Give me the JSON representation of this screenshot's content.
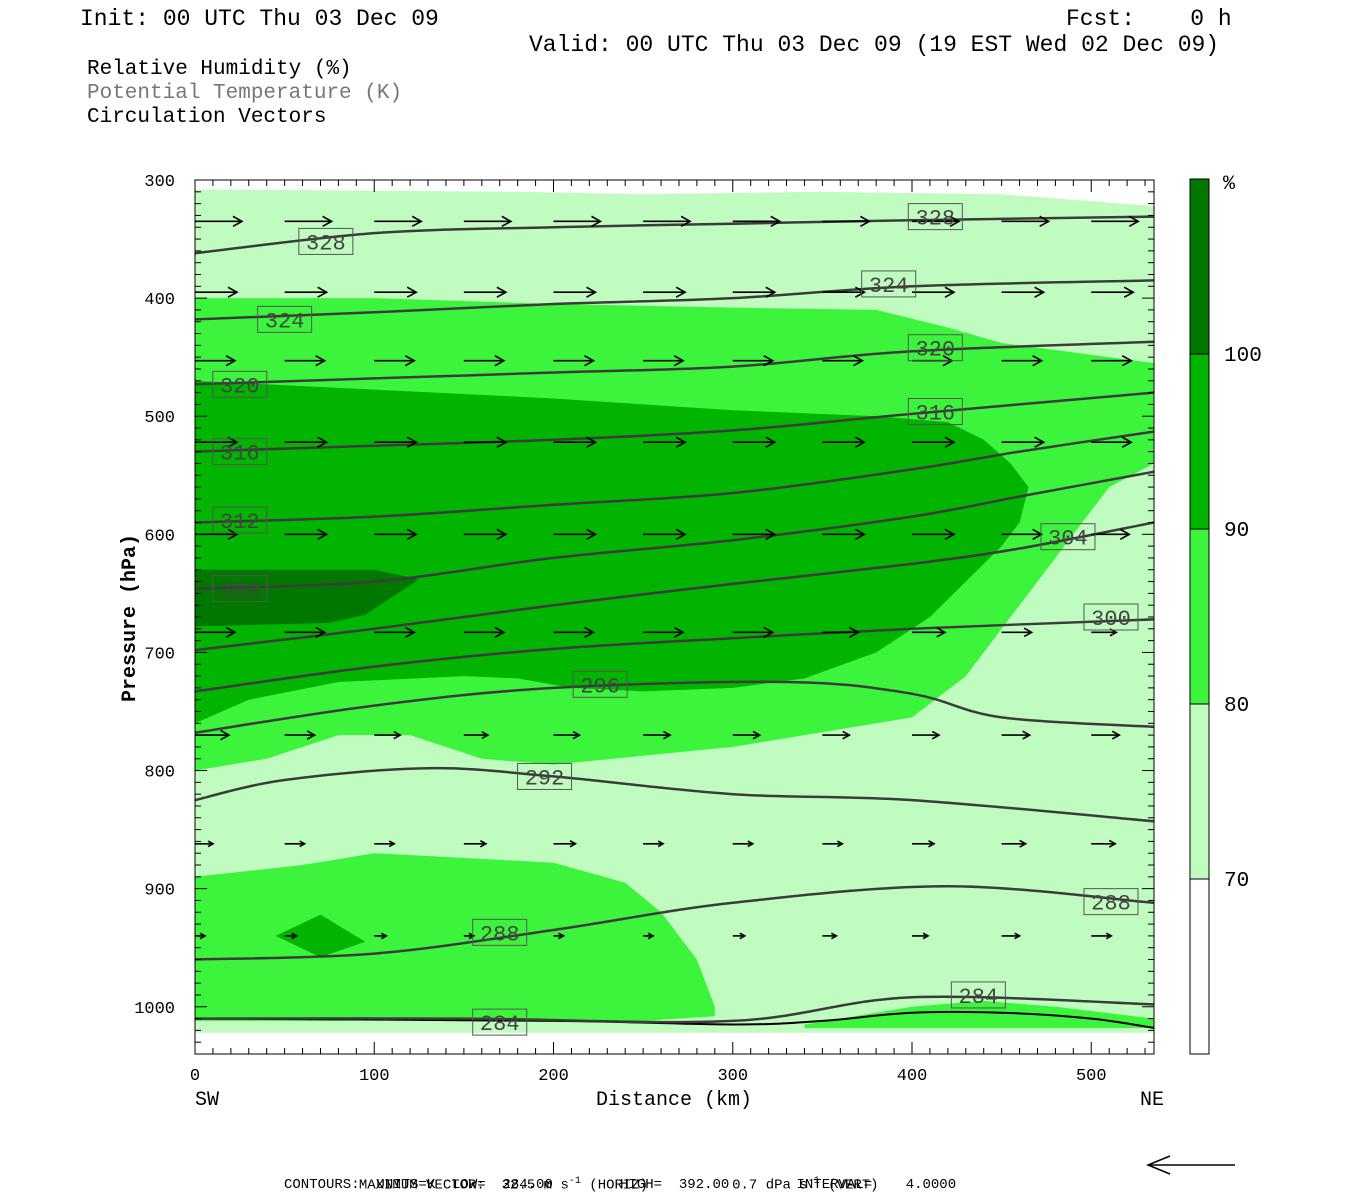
{
  "header": {
    "init": "Init: 00 UTC Thu 03 Dec 09",
    "fcst": "Fcst:    0 h",
    "valid": "Valid: 00 UTC Thu 03 Dec 09 (19 EST Wed 02 Dec 09)"
  },
  "legend_lines": [
    {
      "text": "Relative Humidity (%)",
      "color": "#000000"
    },
    {
      "text": "Potential Temperature (K)",
      "color": "#777777"
    },
    {
      "text": "Circulation Vectors",
      "color": "#000000"
    }
  ],
  "footer": {
    "max_vector_label": "MAXIMUM VECTOR:",
    "max_horiz_value": "32.5 m s",
    "horiz_unit_sup": "-1",
    "horiz_label": "(HORIZ)",
    "max_vert_value": "0.7 dPa s",
    "vert_unit_sup": "-1",
    "vert_label": "(VERT)",
    "contours": "CONTOURS:  UNITS=K  LOW=  284.00        HIGH=  392.00        INTERVAL=    4.0000"
  },
  "chart_data": {
    "type": "contour-cross-section",
    "xlabel": "Distance (km)",
    "ylabel": "Pressure (hPa)",
    "x_range": [
      0,
      535
    ],
    "y_range": [
      300,
      1040
    ],
    "y_scale": "linear-inverted",
    "x_ticks": [
      0,
      100,
      200,
      300,
      400,
      500
    ],
    "y_ticks": [
      300,
      400,
      500,
      600,
      700,
      800,
      900,
      1000
    ],
    "x_end_labels": {
      "left": "SW",
      "right": "NE"
    },
    "colorbar": {
      "unit": "%",
      "ticks": [
        70,
        80,
        90,
        100
      ],
      "bins": [
        {
          "range": [
            0,
            70
          ],
          "color": "#ffffff"
        },
        {
          "range": [
            70,
            80
          ],
          "color": "#c0fcc0"
        },
        {
          "range": [
            80,
            90
          ],
          "color": "#3cf43c"
        },
        {
          "range": [
            90,
            100
          ],
          "color": "#00b400"
        },
        {
          "range": [
            100,
            110
          ],
          "color": "#007800"
        }
      ]
    },
    "rh_fill": [
      {
        "level": 70,
        "color": "#c0fcc0",
        "points": [
          [
            0,
            308
          ],
          [
            180,
            310
          ],
          [
            250,
            312
          ],
          [
            350,
            310
          ],
          [
            450,
            312
          ],
          [
            535,
            322
          ],
          [
            535,
            1022
          ],
          [
            460,
            1022
          ],
          [
            380,
            1022
          ],
          [
            300,
            1022
          ],
          [
            0,
            1022
          ]
        ]
      },
      {
        "level": 80,
        "color": "#3cf43c",
        "points": [
          [
            0,
            400
          ],
          [
            100,
            400
          ],
          [
            200,
            405
          ],
          [
            300,
            408
          ],
          [
            380,
            410
          ],
          [
            420,
            425
          ],
          [
            450,
            438
          ],
          [
            535,
            455
          ],
          [
            535,
            540
          ],
          [
            510,
            560
          ],
          [
            490,
            600
          ],
          [
            470,
            640
          ],
          [
            450,
            680
          ],
          [
            430,
            720
          ],
          [
            400,
            755
          ],
          [
            300,
            780
          ],
          [
            200,
            795
          ],
          [
            160,
            790
          ],
          [
            120,
            770
          ],
          [
            80,
            770
          ],
          [
            40,
            790
          ],
          [
            0,
            800
          ]
        ]
      },
      {
        "level": 80,
        "color": "#3cf43c",
        "points": [
          [
            0,
            890
          ],
          [
            60,
            880
          ],
          [
            100,
            870
          ],
          [
            200,
            878
          ],
          [
            240,
            895
          ],
          [
            260,
            920
          ],
          [
            280,
            960
          ],
          [
            290,
            1000
          ],
          [
            290,
            1008
          ],
          [
            250,
            1012
          ],
          [
            180,
            1012
          ],
          [
            120,
            1010
          ],
          [
            80,
            1012
          ],
          [
            40,
            1012
          ],
          [
            0,
            1012
          ]
        ]
      },
      {
        "level": 80,
        "color": "#3cf43c",
        "points": [
          [
            340,
            1015
          ],
          [
            400,
            1000
          ],
          [
            440,
            995
          ],
          [
            480,
            1000
          ],
          [
            535,
            1010
          ],
          [
            535,
            1018
          ],
          [
            470,
            1018
          ],
          [
            340,
            1018
          ]
        ]
      },
      {
        "level": 90,
        "color": "#00b400",
        "points": [
          [
            0,
            470
          ],
          [
            200,
            485
          ],
          [
            300,
            495
          ],
          [
            380,
            500
          ],
          [
            420,
            505
          ],
          [
            440,
            520
          ],
          [
            455,
            540
          ],
          [
            465,
            560
          ],
          [
            460,
            590
          ],
          [
            450,
            610
          ],
          [
            430,
            640
          ],
          [
            410,
            670
          ],
          [
            380,
            700
          ],
          [
            340,
            722
          ],
          [
            300,
            730
          ],
          [
            250,
            733
          ],
          [
            210,
            730
          ],
          [
            180,
            722
          ],
          [
            150,
            720
          ],
          [
            80,
            725
          ],
          [
            30,
            740
          ],
          [
            0,
            760
          ]
        ]
      },
      {
        "level": 90,
        "color": "#00b400",
        "points": [
          [
            45,
            940
          ],
          [
            70,
            922
          ],
          [
            95,
            945
          ],
          [
            70,
            958
          ]
        ]
      },
      {
        "level": 100,
        "color": "#007800",
        "points": [
          [
            0,
            630
          ],
          [
            100,
            630
          ],
          [
            125,
            638
          ],
          [
            95,
            668
          ],
          [
            75,
            675
          ],
          [
            0,
            678
          ]
        ]
      }
    ],
    "theta_contours": [
      {
        "value": 328,
        "label_at": [
          73,
          352
        ],
        "points": [
          [
            0,
            362
          ],
          [
            100,
            345
          ],
          [
            200,
            340
          ],
          [
            300,
            337
          ],
          [
            400,
            334
          ],
          [
            535,
            331
          ]
        ]
      },
      {
        "value": 328,
        "label_at": [
          413,
          331
        ],
        "points": []
      },
      {
        "value": 324,
        "label_at": [
          50,
          418
        ],
        "points": [
          [
            0,
            418
          ],
          [
            100,
            412
          ],
          [
            200,
            405
          ],
          [
            300,
            400
          ],
          [
            400,
            390
          ],
          [
            535,
            385
          ]
        ]
      },
      {
        "value": 324,
        "label_at": [
          387,
          388
        ],
        "points": []
      },
      {
        "value": 320,
        "label_at": [
          25,
          473
        ],
        "points": [
          [
            0,
            473
          ],
          [
            100,
            468
          ],
          [
            200,
            463
          ],
          [
            300,
            458
          ],
          [
            400,
            445
          ],
          [
            535,
            437
          ]
        ]
      },
      {
        "value": 320,
        "label_at": [
          413,
          442
        ],
        "points": []
      },
      {
        "value": 316,
        "label_at": [
          25,
          530
        ],
        "points": [
          [
            0,
            530
          ],
          [
            100,
            525
          ],
          [
            200,
            520
          ],
          [
            300,
            512
          ],
          [
            400,
            498
          ],
          [
            535,
            480
          ]
        ]
      },
      {
        "value": 316,
        "label_at": [
          413,
          496
        ],
        "points": []
      },
      {
        "value": 312,
        "label_at": [
          25,
          588
        ],
        "points": [
          [
            0,
            590
          ],
          [
            100,
            585
          ],
          [
            200,
            575
          ],
          [
            300,
            565
          ],
          [
            400,
            545
          ],
          [
            460,
            530
          ],
          [
            535,
            513
          ]
        ]
      },
      {
        "value": 308,
        "label_at": [
          25,
          646
        ],
        "points": [
          [
            0,
            646
          ],
          [
            100,
            640
          ],
          [
            200,
            620
          ],
          [
            300,
            605
          ],
          [
            400,
            585
          ],
          [
            460,
            568
          ],
          [
            535,
            547
          ]
        ]
      },
      {
        "value": 304,
        "label_at": [
          487,
          602
        ],
        "points": [
          [
            0,
            698
          ],
          [
            100,
            680
          ],
          [
            200,
            660
          ],
          [
            300,
            642
          ],
          [
            400,
            625
          ],
          [
            460,
            612
          ],
          [
            535,
            590
          ]
        ]
      },
      {
        "value": 300,
        "label_at": [
          511,
          670
        ],
        "points": [
          [
            0,
            733
          ],
          [
            100,
            712
          ],
          [
            200,
            697
          ],
          [
            300,
            688
          ],
          [
            400,
            680
          ],
          [
            535,
            672
          ]
        ]
      },
      {
        "value": 296,
        "label_at": [
          226,
          727
        ],
        "points": [
          [
            0,
            768
          ],
          [
            100,
            745
          ],
          [
            200,
            730
          ],
          [
            330,
            725
          ],
          [
            400,
            735
          ],
          [
            450,
            755
          ],
          [
            535,
            763
          ]
        ]
      },
      {
        "value": 292,
        "label_at": [
          195,
          805
        ],
        "points": [
          [
            0,
            825
          ],
          [
            50,
            808
          ],
          [
            130,
            798
          ],
          [
            200,
            805
          ],
          [
            300,
            820
          ],
          [
            400,
            825
          ],
          [
            535,
            843
          ]
        ]
      },
      {
        "value": 288,
        "label_at": [
          170,
          937
        ],
        "points": [
          [
            0,
            960
          ],
          [
            100,
            955
          ],
          [
            200,
            935
          ],
          [
            300,
            912
          ],
          [
            420,
            898
          ],
          [
            535,
            912
          ]
        ]
      },
      {
        "value": 288,
        "label_at": [
          511,
          911
        ],
        "points": []
      },
      {
        "value": 284,
        "label_at": [
          170,
          1013
        ],
        "points": [
          [
            0,
            1010
          ],
          [
            150,
            1010
          ],
          [
            300,
            1012
          ],
          [
            400,
            992
          ],
          [
            535,
            998
          ]
        ]
      },
      {
        "value": 284,
        "label_at": [
          437,
          990
        ],
        "points": []
      }
    ],
    "surface_line": [
      [
        0,
        1010
      ],
      [
        200,
        1012
      ],
      [
        300,
        1015
      ],
      [
        350,
        1012
      ],
      [
        400,
        1005
      ],
      [
        450,
        1005
      ],
      [
        500,
        1010
      ],
      [
        535,
        1018
      ]
    ],
    "vector_rows": [
      {
        "p": 335,
        "x": [
          0,
          50,
          100,
          150,
          200,
          250,
          300,
          350,
          400,
          450,
          500
        ],
        "u": [
          47,
          47,
          47,
          47,
          47,
          47,
          47,
          47,
          47,
          47,
          47
        ]
      },
      {
        "p": 395,
        "x": [
          0,
          50,
          100,
          150,
          200,
          250,
          300,
          350,
          400,
          450,
          500
        ],
        "u": [
          42,
          42,
          42,
          42,
          42,
          42,
          42,
          42,
          42,
          42,
          42
        ]
      },
      {
        "p": 453,
        "x": [
          0,
          50,
          100,
          150,
          200,
          250,
          300,
          350,
          400,
          450,
          500
        ],
        "u": [
          40,
          40,
          40,
          40,
          40,
          40,
          40,
          40,
          40,
          40,
          40
        ]
      },
      {
        "p": 522,
        "x": [
          0,
          50,
          100,
          150,
          200,
          250,
          300,
          350,
          400,
          450,
          500
        ],
        "u": [
          42,
          42,
          42,
          42,
          42,
          42,
          42,
          42,
          42,
          42,
          40
        ]
      },
      {
        "p": 600,
        "x": [
          0,
          50,
          100,
          150,
          200,
          250,
          300,
          350,
          400,
          450,
          500
        ],
        "u": [
          42,
          42,
          42,
          42,
          42,
          42,
          42,
          42,
          42,
          40,
          38
        ]
      },
      {
        "p": 683,
        "x": [
          0,
          50,
          100,
          150,
          200,
          250,
          300,
          350,
          400,
          450,
          500
        ],
        "u": [
          40,
          40,
          40,
          40,
          40,
          40,
          40,
          36,
          33,
          30,
          25
        ]
      },
      {
        "p": 770,
        "x": [
          0,
          50,
          100,
          150,
          200,
          250,
          300,
          350,
          400,
          450,
          500
        ],
        "u": [
          34,
          30,
          26,
          24,
          26,
          27,
          27,
          27,
          27,
          28,
          28
        ]
      },
      {
        "p": 862,
        "x": [
          0,
          50,
          100,
          150,
          200,
          250,
          300,
          350,
          400,
          450,
          500
        ],
        "u": [
          18,
          20,
          20,
          22,
          22,
          20,
          20,
          20,
          22,
          24,
          24
        ]
      },
      {
        "p": 940,
        "x": [
          0,
          50,
          100,
          150,
          200,
          250,
          300,
          350,
          400,
          450,
          500
        ],
        "u": [
          10,
          12,
          12,
          10,
          10,
          10,
          12,
          14,
          16,
          18,
          20
        ]
      }
    ],
    "reference_vector": {
      "direction": "left"
    }
  }
}
